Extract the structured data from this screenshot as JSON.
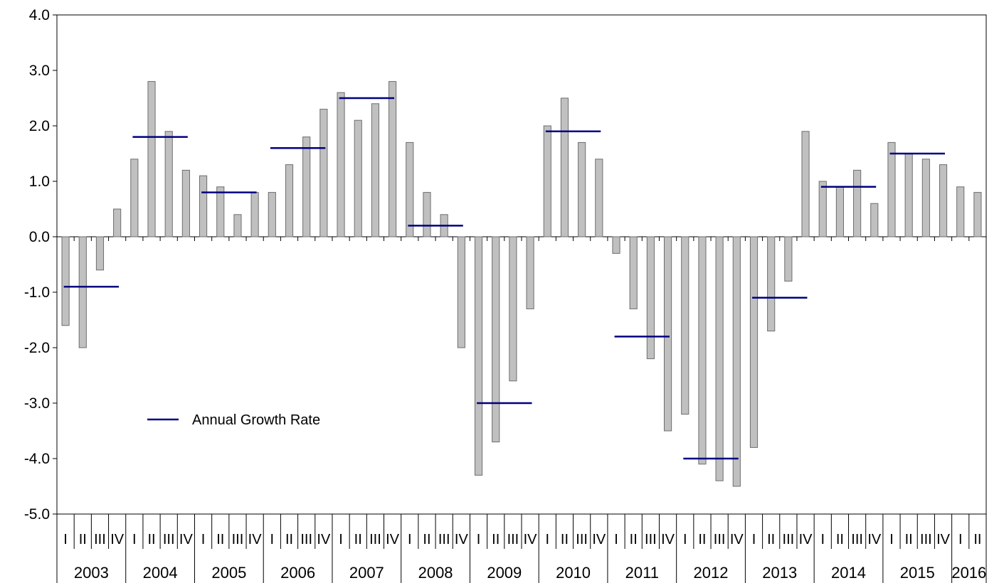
{
  "chart_data": {
    "type": "bar",
    "title": "",
    "xlabel": "",
    "ylabel": "",
    "ylim": [
      -5,
      4
    ],
    "yticks": [
      "4.0",
      "3.0",
      "2.0",
      "1.0",
      "0.0",
      "-1.0",
      "-2.0",
      "-3.0",
      "-4.0",
      "-5.0"
    ],
    "grid": false,
    "legend": {
      "position": "lower-left",
      "label": "Annual Growth Rate"
    },
    "colors": {
      "bar_fill": "#c0c0c0",
      "bar_stroke": "#6e6e6e",
      "annual_line": "#000080"
    },
    "quarter_labels": [
      "I",
      "II",
      "III",
      "IV"
    ],
    "years": [
      "2003",
      "2004",
      "2005",
      "2006",
      "2007",
      "2008",
      "2009",
      "2010",
      "2011",
      "2012",
      "2013",
      "2014",
      "2015",
      "2016"
    ],
    "series": [
      {
        "type": "bar",
        "values": [
          -1.6,
          -2.0,
          -0.6,
          0.5,
          1.4,
          2.8,
          1.9,
          1.2,
          1.1,
          0.9,
          0.4,
          0.8,
          0.8,
          1.3,
          1.8,
          2.3,
          2.6,
          2.1,
          2.4,
          2.8,
          1.7,
          0.8,
          0.4,
          -2.0,
          -4.3,
          -3.7,
          -2.6,
          -1.3,
          2.0,
          2.5,
          1.7,
          1.4,
          -0.3,
          -1.3,
          -2.2,
          -3.5,
          -3.2,
          -4.1,
          -4.4,
          -4.5,
          -3.8,
          -1.7,
          -0.8,
          1.9,
          1.0,
          0.9,
          1.2,
          0.6,
          1.7,
          1.5,
          1.4,
          1.3,
          0.9,
          0.8
        ]
      },
      {
        "name": "Annual Growth Rate",
        "type": "line-segments",
        "values": [
          -0.9,
          1.8,
          0.8,
          1.6,
          2.5,
          0.2,
          -3.0,
          1.9,
          -1.8,
          -4.0,
          -1.1,
          0.9,
          1.5
        ]
      }
    ]
  }
}
